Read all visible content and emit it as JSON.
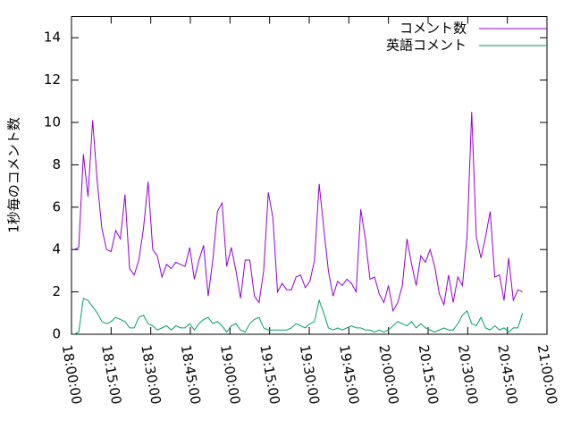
{
  "chart_data": {
    "type": "line",
    "y_label": "1秒毎のコメント数",
    "x": [
      "18:01:00",
      "18:02:45",
      "18:04:30",
      "18:06:15",
      "18:08:00",
      "18:09:45",
      "18:11:30",
      "18:13:15",
      "18:15:00",
      "18:16:45",
      "18:18:30",
      "18:20:15",
      "18:22:00",
      "18:23:45",
      "18:25:30",
      "18:27:15",
      "18:29:00",
      "18:30:45",
      "18:32:30",
      "18:34:15",
      "18:36:00",
      "18:37:45",
      "18:39:30",
      "18:41:15",
      "18:43:00",
      "18:44:45",
      "18:46:30",
      "18:48:15",
      "18:50:00",
      "18:51:45",
      "18:53:30",
      "18:55:15",
      "18:57:00",
      "18:58:45",
      "19:00:30",
      "19:02:15",
      "19:04:00",
      "19:05:45",
      "19:07:30",
      "19:09:15",
      "19:11:00",
      "19:12:45",
      "19:14:30",
      "19:16:15",
      "19:18:00",
      "19:19:45",
      "19:21:30",
      "19:23:15",
      "19:25:00",
      "19:26:45",
      "19:28:30",
      "19:30:15",
      "19:32:00",
      "19:33:45",
      "19:35:30",
      "19:37:15",
      "19:39:00",
      "19:40:45",
      "19:42:30",
      "19:44:15",
      "19:46:00",
      "19:47:45",
      "19:49:30",
      "19:51:15",
      "19:53:00",
      "19:54:45",
      "19:56:30",
      "19:58:15",
      "20:00:00",
      "20:01:45",
      "20:03:30",
      "20:05:15",
      "20:07:00",
      "20:08:45",
      "20:10:30",
      "20:12:15",
      "20:14:00",
      "20:15:45",
      "20:17:30",
      "20:19:15",
      "20:21:00",
      "20:22:45",
      "20:24:30",
      "20:26:15",
      "20:28:00",
      "20:29:45",
      "20:31:30",
      "20:33:15",
      "20:35:00",
      "20:36:45",
      "20:38:30",
      "20:40:15",
      "20:42:00",
      "20:43:45",
      "20:45:30",
      "20:47:15",
      "20:49:00",
      "20:50:45"
    ],
    "series": [
      {
        "name": "コメント数",
        "color": "#9400d3",
        "values": [
          4.0,
          4.1,
          8.5,
          6.5,
          10.1,
          7.2,
          5.0,
          4.0,
          3.9,
          4.9,
          4.5,
          6.6,
          3.1,
          2.8,
          3.5,
          5.0,
          7.2,
          4.0,
          3.7,
          2.7,
          3.3,
          3.1,
          3.4,
          3.3,
          3.2,
          4.1,
          2.6,
          3.5,
          4.2,
          1.8,
          3.5,
          5.8,
          6.2,
          3.2,
          4.1,
          3.0,
          1.7,
          3.5,
          3.5,
          1.8,
          1.5,
          3.0,
          6.7,
          5.5,
          2.0,
          2.4,
          2.1,
          2.1,
          2.7,
          2.8,
          2.2,
          2.5,
          3.5,
          7.1,
          5.0,
          3.0,
          1.8,
          2.5,
          2.3,
          2.6,
          2.4,
          2.0,
          5.9,
          4.5,
          2.6,
          2.7,
          1.9,
          1.5,
          2.3,
          1.1,
          1.5,
          2.3,
          4.5,
          3.3,
          2.3,
          3.7,
          3.4,
          4.0,
          3.2,
          1.9,
          1.4,
          2.8,
          1.5,
          2.7,
          2.3,
          4.6,
          10.5,
          4.6,
          3.6,
          4.6,
          5.8,
          2.7,
          2.8,
          1.6,
          3.6,
          1.6,
          2.1,
          2.0
        ]
      },
      {
        "name": "英語コメント",
        "color": "#009e73",
        "values": [
          0.0,
          0.1,
          1.7,
          1.6,
          1.3,
          1.0,
          0.6,
          0.5,
          0.6,
          0.8,
          0.7,
          0.6,
          0.3,
          0.3,
          0.8,
          0.9,
          0.5,
          0.4,
          0.2,
          0.3,
          0.4,
          0.2,
          0.4,
          0.3,
          0.3,
          0.5,
          0.2,
          0.5,
          0.7,
          0.8,
          0.5,
          0.6,
          0.4,
          0.1,
          0.4,
          0.5,
          0.2,
          0.1,
          0.5,
          0.7,
          0.8,
          0.3,
          0.2,
          0.2,
          0.2,
          0.2,
          0.2,
          0.3,
          0.5,
          0.4,
          0.3,
          0.5,
          0.6,
          1.6,
          1.0,
          0.3,
          0.2,
          0.3,
          0.2,
          0.3,
          0.4,
          0.3,
          0.3,
          0.2,
          0.2,
          0.1,
          0.2,
          0.1,
          0.2,
          0.4,
          0.6,
          0.5,
          0.4,
          0.6,
          0.3,
          0.5,
          0.3,
          0.2,
          0.1,
          0.2,
          0.3,
          0.2,
          0.2,
          0.5,
          0.9,
          1.1,
          0.5,
          0.4,
          0.8,
          0.3,
          0.2,
          0.4,
          0.2,
          0.3,
          0.1,
          0.3,
          0.3,
          1.0
        ]
      }
    ],
    "xlim": [
      "18:00:00",
      "21:00:00"
    ],
    "xticks": [
      "18:00:00",
      "18:15:00",
      "18:30:00",
      "18:45:00",
      "19:00:00",
      "19:15:00",
      "19:30:00",
      "19:45:00",
      "20:00:00",
      "20:15:00",
      "20:30:00",
      "20:45:00",
      "21:00:00"
    ],
    "ylim": [
      0,
      15
    ],
    "yticks": [
      0,
      2,
      4,
      6,
      8,
      10,
      12,
      14
    ],
    "legend": "upper right"
  }
}
